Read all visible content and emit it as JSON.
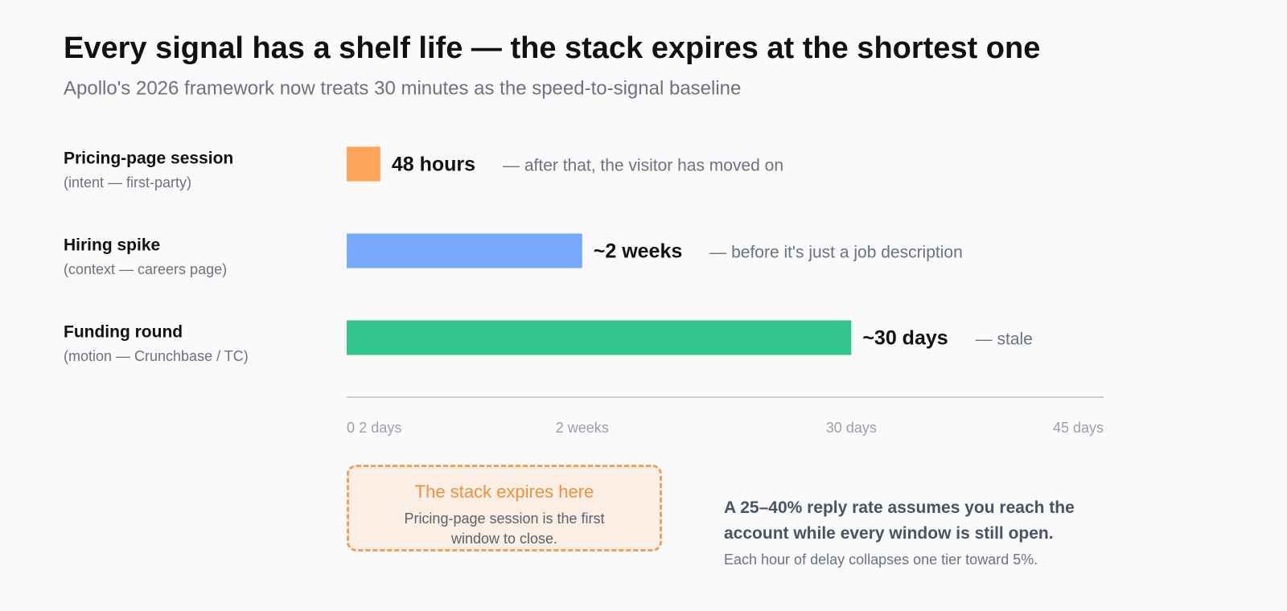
{
  "chart_data": {
    "type": "bar",
    "orientation": "horizontal",
    "title": "Every signal has a shelf life — the stack expires at the shortest one",
    "subtitle": "Apollo's 2026 framework now treats 30 minutes as the speed-to-signal baseline",
    "categories": [
      "Pricing-page session",
      "Hiring spike",
      "Funding round"
    ],
    "category_notes": [
      "(intent — first-party)",
      "(context — careers page)",
      "(motion — Crunchbase / TC)"
    ],
    "values": [
      2,
      14,
      30
    ],
    "value_labels": [
      "48 hours",
      "~2 weeks",
      "~30 days"
    ],
    "annotations": [
      "— after that, the visitor has moved on",
      "— before it's just a job description",
      "— stale"
    ],
    "colors": [
      "#fda35a",
      "#76a9fa",
      "#31c48d"
    ],
    "xlim": [
      0,
      45
    ],
    "xticks": [
      0,
      {
        "value": 2,
        "label": "2 days"
      },
      {
        "value": 14,
        "label": "2 weeks"
      },
      {
        "value": 30,
        "label": "30 days"
      },
      {
        "value": 45,
        "label": "45 days"
      }
    ]
  },
  "callout": {
    "title": "The stack expires here",
    "text": "Pricing-page session is the first window to close."
  },
  "takeaway": {
    "headline": "A 25–40% reply rate assumes you reach the account while every window is still open.",
    "text": "Each hour of delay collapses one tier toward 5%."
  }
}
